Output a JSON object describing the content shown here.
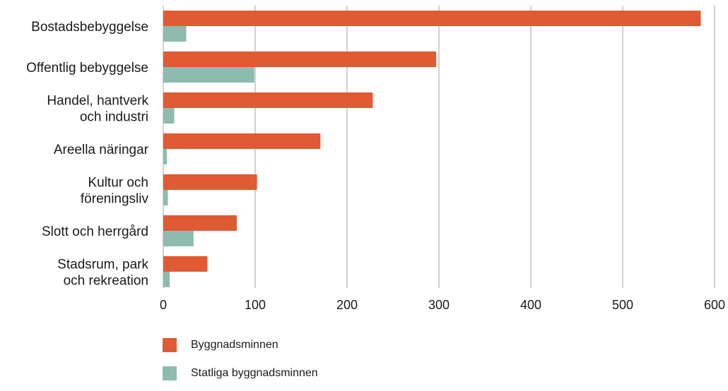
{
  "chart_data": {
    "type": "bar",
    "orientation": "horizontal",
    "categories": [
      [
        "Bostadsbebyggelse"
      ],
      [
        "Offentlig bebyggelse"
      ],
      [
        "Handel, hantverk",
        "och industri"
      ],
      [
        "Areella näringar"
      ],
      [
        "Kultur och",
        "föreningsliv"
      ],
      [
        "Slott och herrgård"
      ],
      [
        "Stadsrum,  park",
        "och rekreation"
      ]
    ],
    "series": [
      {
        "name": "Byggnadsminnen",
        "color": "#e05a33",
        "values": [
          585,
          297,
          228,
          171,
          102,
          80,
          48
        ]
      },
      {
        "name": "Statliga byggnadsminnen",
        "color": "#8ebbb0",
        "values": [
          25,
          99,
          12,
          4,
          5,
          33,
          7
        ]
      }
    ],
    "xticks": [
      "0",
      "100",
      "200",
      "300",
      "400",
      "500",
      "600"
    ],
    "xlim": [
      0,
      600
    ],
    "grid": true,
    "legend_position": "bottom-left",
    "gridline_color": "#a0a0a0"
  }
}
